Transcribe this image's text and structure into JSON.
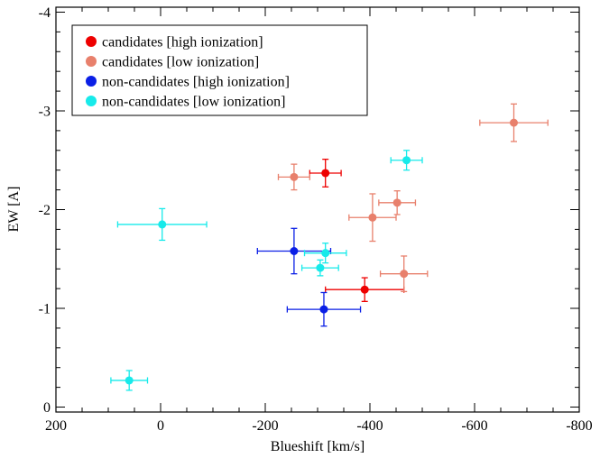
{
  "chart_data": {
    "type": "scatter",
    "xlabel": "Blueshift [km/s]",
    "ylabel": "EW [A]",
    "xlim": [
      200,
      -800
    ],
    "ylim": [
      0.05,
      -4.05
    ],
    "xticks": [
      200,
      0,
      -200,
      -400,
      -600,
      -800
    ],
    "xtick_labels": [
      "200",
      "0",
      "-200",
      "-400",
      "-600",
      "-800"
    ],
    "yticks": [
      0,
      -1,
      -2,
      -3,
      -4
    ],
    "ytick_labels": [
      "0",
      "-1",
      "-2",
      "-3",
      "-4"
    ],
    "x_minor_step": 50,
    "y_minor_step": 0.2,
    "grid": false,
    "legend_position": "top-left",
    "series": [
      {
        "name": "candidates [high ionization]",
        "color": "#ee0000",
        "points": [
          {
            "x": -315,
            "y": -2.37,
            "xerr": 30,
            "yerr": 0.14
          },
          {
            "x": -390,
            "y": -1.19,
            "xerr": 75,
            "yerr": 0.12
          }
        ]
      },
      {
        "name": "candidates [low ionization]",
        "color": "#e8806c",
        "points": [
          {
            "x": -255,
            "y": -2.33,
            "xerr": 30,
            "yerr": 0.13
          },
          {
            "x": -405,
            "y": -1.92,
            "xerr": 45,
            "yerr": 0.24
          },
          {
            "x": -452,
            "y": -2.07,
            "xerr": 35,
            "yerr": 0.12
          },
          {
            "x": -465,
            "y": -1.35,
            "xerr": 45,
            "yerr": 0.18
          },
          {
            "x": -675,
            "y": -2.88,
            "xerr": 65,
            "yerr": 0.19
          }
        ]
      },
      {
        "name": "non-candidates [high ionization]",
        "color": "#0a1fe6",
        "points": [
          {
            "x": -255,
            "y": -1.58,
            "xerr": 70,
            "yerr": 0.23
          },
          {
            "x": -312,
            "y": -0.99,
            "xerr": 70,
            "yerr": 0.17
          }
        ]
      },
      {
        "name": "non-candidates [low ionization]",
        "color": "#17eaea",
        "points": [
          {
            "x": -3,
            "y": -1.85,
            "xerr": 85,
            "yerr": 0.16
          },
          {
            "x": 60,
            "y": -0.27,
            "xerr": 35,
            "yerr": 0.1
          },
          {
            "x": -305,
            "y": -1.41,
            "xerr": 35,
            "yerr": 0.08
          },
          {
            "x": -315,
            "y": -1.56,
            "xerr": 40,
            "yerr": 0.1
          },
          {
            "x": -470,
            "y": -2.5,
            "xerr": 30,
            "yerr": 0.1
          }
        ]
      }
    ]
  }
}
